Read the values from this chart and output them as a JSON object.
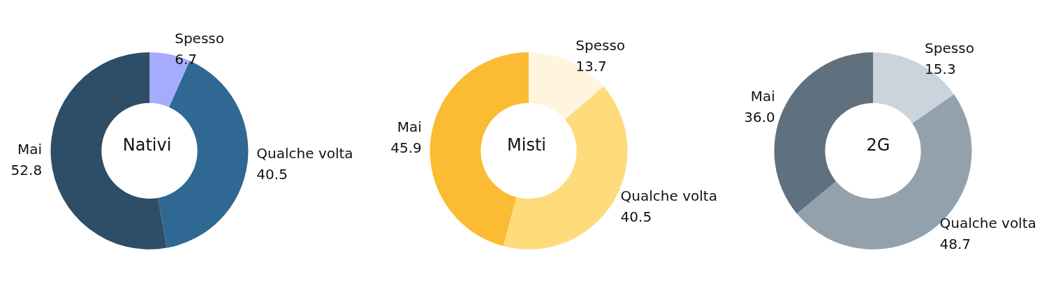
{
  "chart_data": [
    {
      "type": "donut",
      "title": "Nativi",
      "categories": [
        "Spesso",
        "Qualche volta",
        "Mai"
      ],
      "values": [
        6.7,
        40.5,
        52.8
      ],
      "value_labels": [
        "6.7",
        "40.5",
        "52.8"
      ],
      "colors": [
        "#a5acff",
        "#2e6893",
        "#2e4d66"
      ]
    },
    {
      "type": "donut",
      "title": "Misti",
      "categories": [
        "Spesso",
        "Qualche volta",
        "Mai"
      ],
      "values": [
        13.7,
        40.5,
        45.9
      ],
      "value_labels": [
        "13.7",
        "40.5",
        "45.9"
      ],
      "colors": [
        "#fff5df",
        "#fedb7b",
        "#fbbb32"
      ]
    },
    {
      "type": "donut",
      "title": "2G",
      "categories": [
        "Spesso",
        "Qualche volta",
        "Mai"
      ],
      "values": [
        15.3,
        48.7,
        36.0
      ],
      "value_labels": [
        "15.3",
        "48.7",
        "36.0"
      ],
      "colors": [
        "#cbd3dc",
        "#93a1ac",
        "#5f707e"
      ]
    }
  ]
}
